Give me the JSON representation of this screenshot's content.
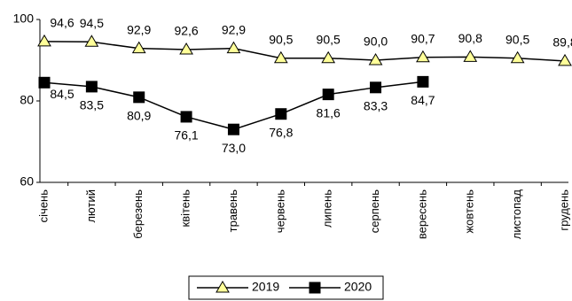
{
  "chart_data": {
    "type": "line",
    "categories": [
      "січень",
      "лютий",
      "березень",
      "квітень",
      "травень",
      "червень",
      "липень",
      "серпень",
      "вересень",
      "жовтень",
      "листопад",
      "грудень"
    ],
    "series": [
      {
        "name": "2019",
        "color": "#ffff99",
        "marker": "triangle",
        "values": [
          94.6,
          94.5,
          92.9,
          92.6,
          92.9,
          90.5,
          90.5,
          90.0,
          90.7,
          90.8,
          90.5,
          89.8
        ],
        "value_labels": [
          "94,6",
          "94,5",
          "92,9",
          "92,6",
          "92,9",
          "90,5",
          "90,5",
          "90,0",
          "90,7",
          "90,8",
          "90,5",
          "89,8"
        ]
      },
      {
        "name": "2020",
        "color": "#000000",
        "marker": "square",
        "values": [
          84.5,
          83.5,
          80.9,
          76.1,
          73.0,
          76.8,
          81.6,
          83.3,
          84.7,
          null,
          null,
          null
        ],
        "value_labels": [
          "84,5",
          "83,5",
          "80,9",
          "76,1",
          "73,0",
          "76,8",
          "81,6",
          "83,3",
          "84,7",
          null,
          null,
          null
        ]
      }
    ],
    "ylim": [
      60,
      100
    ],
    "yticks": [
      60,
      80,
      100
    ],
    "legend": "bottom"
  }
}
